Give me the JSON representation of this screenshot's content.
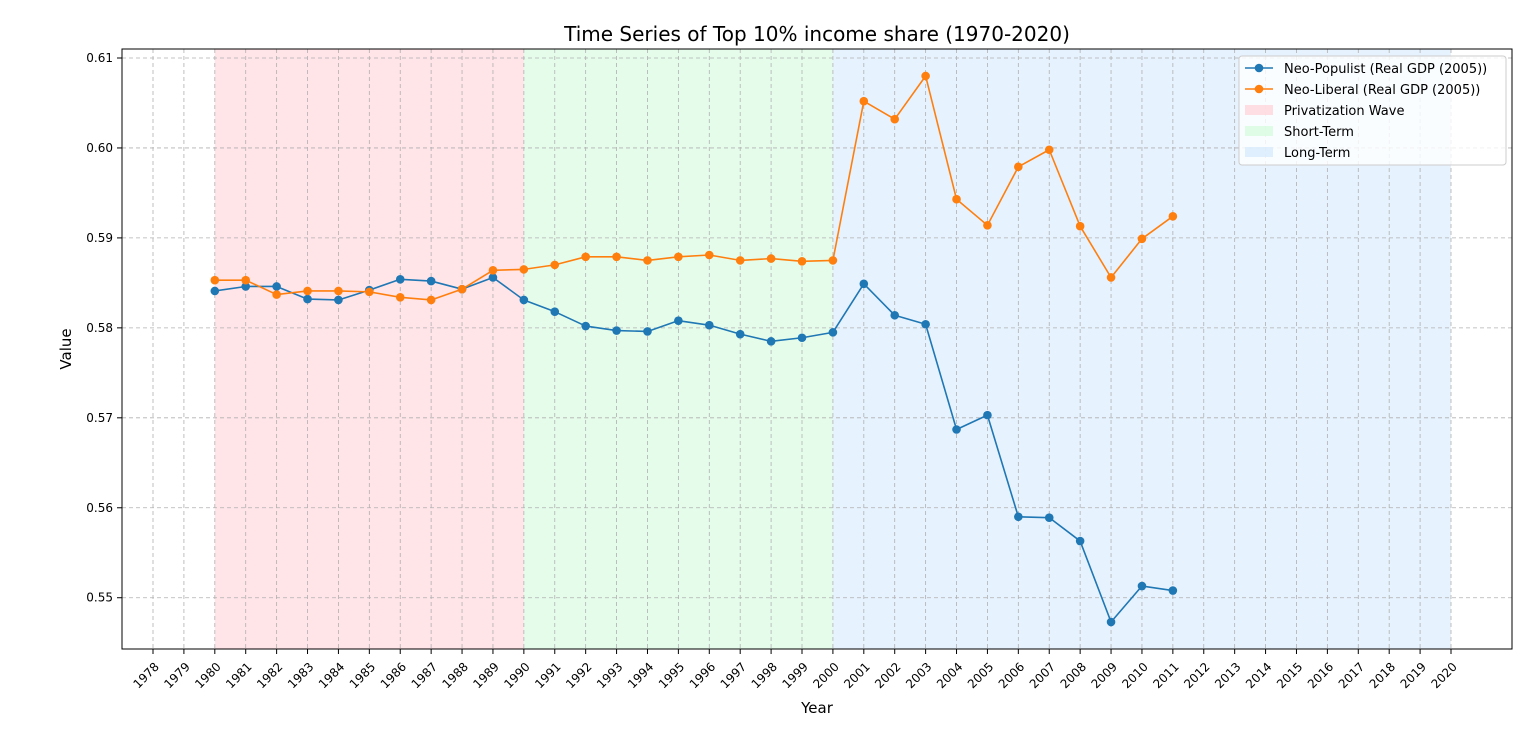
{
  "chart_data": {
    "type": "line",
    "title": "Time Series of Top 10% income share (1970-2020)",
    "xlabel": "Year",
    "ylabel": "Value",
    "xlim": [
      1978,
      2020
    ],
    "ylim": [
      0.5443,
      0.611
    ],
    "x_ticks": [
      1978,
      1979,
      1980,
      1981,
      1982,
      1983,
      1984,
      1985,
      1986,
      1987,
      1988,
      1989,
      1990,
      1991,
      1992,
      1993,
      1994,
      1995,
      1996,
      1997,
      1998,
      1999,
      2000,
      2001,
      2002,
      2003,
      2004,
      2005,
      2006,
      2007,
      2008,
      2009,
      2010,
      2011,
      2012,
      2013,
      2014,
      2015,
      2016,
      2017,
      2018,
      2019,
      2020
    ],
    "y_ticks": [
      0.55,
      0.56,
      0.57,
      0.58,
      0.59,
      0.6,
      0.61
    ],
    "y_tick_labels": [
      "0.55",
      "0.56",
      "0.57",
      "0.58",
      "0.59",
      "0.60",
      "0.61"
    ],
    "grid": true,
    "legend_position": "top-right",
    "x": [
      1980,
      1981,
      1982,
      1983,
      1984,
      1985,
      1986,
      1987,
      1988,
      1989,
      1990,
      1991,
      1992,
      1993,
      1994,
      1995,
      1996,
      1997,
      1998,
      1999,
      2000,
      2001,
      2002,
      2003,
      2004,
      2005,
      2006,
      2007,
      2008,
      2009,
      2010,
      2011
    ],
    "series": [
      {
        "name": "Neo-Populist (Real GDP (2005))",
        "color": "#1f77b4",
        "values": [
          0.5841,
          0.5846,
          0.5846,
          0.5832,
          0.5831,
          0.5842,
          0.5854,
          0.5852,
          0.5843,
          0.5856,
          0.5831,
          0.5818,
          0.5802,
          0.5797,
          0.5796,
          0.5808,
          0.5803,
          0.5793,
          0.5785,
          0.5789,
          0.5795,
          0.5849,
          0.5814,
          0.5804,
          0.5687,
          0.5703,
          0.559,
          0.5589,
          0.5563,
          0.5473,
          0.5513,
          0.5508
        ]
      },
      {
        "name": "Neo-Liberal (Real GDP (2005))",
        "color": "#ff7f0e",
        "values": [
          0.5853,
          0.5853,
          0.5837,
          0.5841,
          0.5841,
          0.584,
          0.5834,
          0.5831,
          0.5843,
          0.5864,
          0.5865,
          0.587,
          0.5879,
          0.5879,
          0.5875,
          0.5879,
          0.5881,
          0.5875,
          0.5877,
          0.5874,
          0.5875,
          0.6052,
          0.6032,
          0.608,
          0.5943,
          0.5914,
          0.5979,
          0.5998,
          0.5913,
          0.5856,
          0.5899,
          0.5924
        ]
      }
    ],
    "shaded_regions": [
      {
        "name": "Privatization Wave",
        "start": 1980,
        "end": 1990,
        "color": "#ffd6dc"
      },
      {
        "name": "Short-Term",
        "start": 1990,
        "end": 2000,
        "color": "#d7fbe0"
      },
      {
        "name": "Long-Term",
        "start": 2000,
        "end": 2020,
        "color": "#d9ebfd"
      }
    ]
  }
}
